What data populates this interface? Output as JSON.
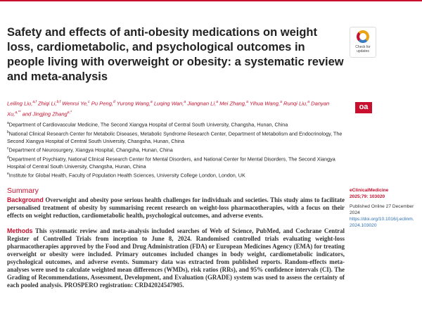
{
  "header": {
    "title": "Safety and effects of anti-obesity medications on weight loss, cardiometabolic, and psychological outcomes in people living with overweight or obesity: a systematic review and meta-analysis",
    "badge": "Check for updates",
    "open_access": "oa"
  },
  "authors": [
    {
      "name": "Leiling Liu,",
      "sup": "a,f"
    },
    {
      "name": "Zhiqi Li,",
      "sup": "b,f"
    },
    {
      "name": "Wenrui Ye,",
      "sup": "c"
    },
    {
      "name": "Pu Peng,",
      "sup": "d"
    },
    {
      "name": "Yurong Wang,",
      "sup": "a"
    },
    {
      "name": "Luqing Wan,",
      "sup": "a"
    },
    {
      "name": "Jiangnan Li,",
      "sup": "a"
    },
    {
      "name": "Mei Zhang,",
      "sup": "a"
    },
    {
      "name": "Yihua Wang,",
      "sup": "a"
    },
    {
      "name": "Runqi Liu,",
      "sup": "a"
    },
    {
      "name": "Danyan Xu,",
      "sup": "a,**"
    },
    {
      "name": "Jingjing Zhang",
      "sup": "e,*"
    }
  ],
  "author_conjunction": "and",
  "affiliations": [
    {
      "sup": "a",
      "text": "Department of Cardiovascular Medicine, The Second Xiangya Hospital of Central South University, Changsha, Hunan, China"
    },
    {
      "sup": "b",
      "text": "National Clinical Research Center for Metabolic Diseases, Metabolic Syndrome Research Center, Department of Metabolism and Endocrinology, The Second Xiangya Hospital of Central South University, Changsha, Hunan, China"
    },
    {
      "sup": "c",
      "text": "Department of Neurosurgery, Xiangya Hospital, Changsha, Hunan, China"
    },
    {
      "sup": "d",
      "text": "Department of Psychiatry, National Clinical Research Center for Mental Disorders, and National Center for Mental Disorders, The Second Xiangya Hospital of Central South University, Changsha, Hunan, China"
    },
    {
      "sup": "e",
      "text": "Institute for Global Health, Faculty of Population Health Sciences, University College London, London, UK"
    }
  ],
  "summary": {
    "heading": "Summary",
    "background": {
      "label": "Background",
      "text": "Overweight and obesity pose serious health challenges for individuals and societies. This study aims to facilitate personalised treatment of obesity by summarising recent research on weight-loss pharmacotherapies, with a focus on their effects on weight reduction, cardiometabolic health, psychological outcomes, and adverse events."
    },
    "methods": {
      "label": "Methods",
      "text": "This systematic review and meta-analysis included searches of Web of Science, PubMed, and Cochrane Central Register of Controlled Trials from inception to June 8, 2024. Randomised controlled trials evaluating weight-loss pharmacotherapies approved by the Food and Drug Administration (FDA) or European Medicines Agency (EMA) for treating overweight or obesity were included. Primary outcomes included changes in body weight, cardiometabolic indicators, psychological outcomes, and adverse events. Summary data was extracted from published reports. Random-effects meta-analyses were used to calculate weighted mean differences (WMDs), risk ratios (RRs), and 95% confidence intervals (CI). The Grading of Recommendations, Assessment, Development, and Evaluation (GRADE) system was used to assess the certainty of each pooled analysis. PROSPERO registration: CRD42024547905."
    }
  },
  "sidebar": {
    "journal": "eClinicalMedicine",
    "citation": "2025;79: 103020",
    "published": "Published Online 27 December 2024",
    "doi": "https://doi.org/10.1016/j.eclinm.2024.103020"
  }
}
